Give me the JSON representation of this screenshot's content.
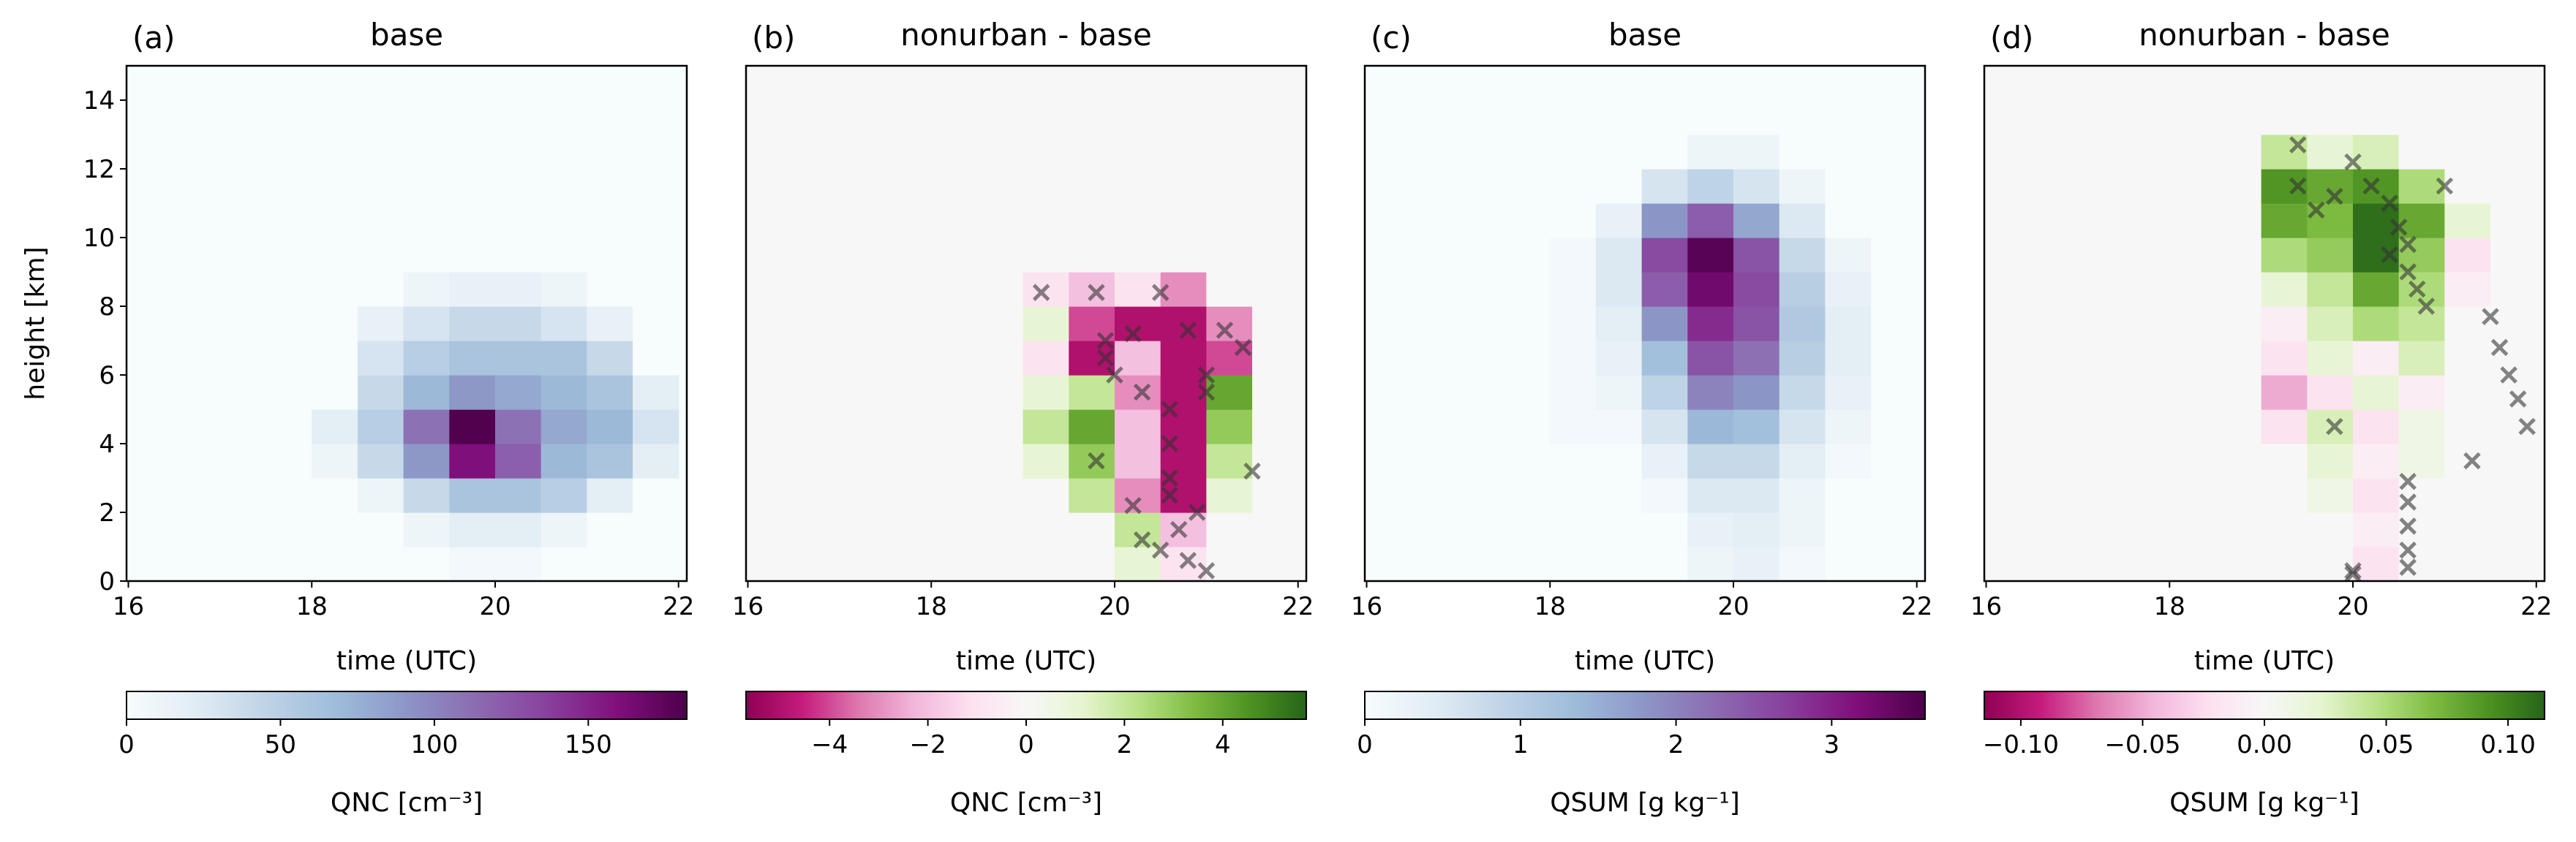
{
  "chart_data": [
    {
      "type": "heatmap",
      "panel_label": "(a)",
      "title": "base",
      "xlabel": "time (UTC)",
      "ylabel": "height [km]",
      "x_edges": [
        16,
        16.5,
        17,
        17.5,
        18,
        18.5,
        19,
        19.5,
        20,
        20.5,
        21,
        21.5,
        22
      ],
      "y_edges": [
        0,
        1,
        2,
        3,
        4,
        5,
        6,
        7,
        8,
        9,
        10,
        11,
        12,
        13,
        14,
        15
      ],
      "z": [
        [
          0,
          0,
          0,
          0,
          0,
          0,
          0,
          5,
          5,
          0,
          0,
          0
        ],
        [
          0,
          0,
          0,
          0,
          0,
          0,
          10,
          20,
          20,
          10,
          0,
          0
        ],
        [
          0,
          0,
          0,
          0,
          0,
          10,
          40,
          60,
          60,
          50,
          20,
          0
        ],
        [
          0,
          0,
          0,
          0,
          10,
          40,
          90,
          160,
          120,
          70,
          60,
          20
        ],
        [
          0,
          0,
          0,
          0,
          20,
          50,
          110,
          180,
          110,
          80,
          70,
          30
        ],
        [
          0,
          0,
          0,
          0,
          0,
          40,
          70,
          90,
          80,
          70,
          60,
          20
        ],
        [
          0,
          0,
          0,
          0,
          0,
          30,
          50,
          60,
          60,
          60,
          40,
          0
        ],
        [
          0,
          0,
          0,
          0,
          0,
          15,
          30,
          40,
          40,
          30,
          15,
          0
        ],
        [
          0,
          0,
          0,
          0,
          0,
          0,
          10,
          15,
          15,
          10,
          0,
          0
        ],
        [
          0,
          0,
          0,
          0,
          0,
          0,
          0,
          0,
          0,
          0,
          0,
          0
        ],
        [
          0,
          0,
          0,
          0,
          0,
          0,
          0,
          0,
          0,
          0,
          0,
          0
        ],
        [
          0,
          0,
          0,
          0,
          0,
          0,
          0,
          0,
          0,
          0,
          0,
          0
        ],
        [
          0,
          0,
          0,
          0,
          0,
          0,
          0,
          0,
          0,
          0,
          0,
          0
        ],
        [
          0,
          0,
          0,
          0,
          0,
          0,
          0,
          0,
          0,
          0,
          0,
          0
        ],
        [
          0,
          0,
          0,
          0,
          0,
          0,
          0,
          0,
          0,
          0,
          0,
          0
        ]
      ],
      "xlim": [
        15.98,
        22.09
      ],
      "xticks": [
        16,
        18,
        20,
        22
      ],
      "ylim": [
        0,
        15
      ],
      "yticks": [
        0,
        2,
        4,
        6,
        8,
        10,
        12,
        14
      ],
      "colormap": [
        "#f7fcfd",
        "#e0ecf4",
        "#bfd3e6",
        "#9ebcda",
        "#8c96c6",
        "#8c6bb1",
        "#88419d",
        "#810f7c",
        "#4d004b"
      ],
      "clim": [
        0,
        182
      ],
      "colorbar_label": "QNC [cm⁻³]",
      "colorbar_ticks": [
        0,
        50,
        100,
        150
      ]
    },
    {
      "type": "heatmap",
      "panel_label": "(b)",
      "title": "nonurban - base",
      "xlabel": "time (UTC)",
      "x_edges": [
        16,
        16.5,
        17,
        17.5,
        18,
        18.5,
        19,
        19.5,
        20,
        20.5,
        21,
        21.5,
        22
      ],
      "y_edges": [
        0,
        1,
        2,
        3,
        4,
        5,
        6,
        7,
        8,
        9,
        10,
        11,
        12,
        13,
        14,
        15
      ],
      "z": [
        [
          0,
          0,
          0,
          0,
          0,
          0,
          0,
          0,
          1,
          -1,
          0,
          0
        ],
        [
          0,
          0,
          0,
          0,
          0,
          0,
          0,
          0,
          2,
          -2,
          0,
          0
        ],
        [
          0,
          0,
          0,
          0,
          0,
          0,
          0,
          2,
          -3,
          -5,
          1,
          0
        ],
        [
          0,
          0,
          0,
          0,
          0,
          0,
          1,
          3,
          -2,
          -5,
          2,
          0
        ],
        [
          0,
          0,
          0,
          0,
          0,
          0,
          2,
          4,
          -2,
          -5,
          3,
          0
        ],
        [
          0,
          0,
          0,
          0,
          0,
          0,
          1,
          2,
          -3,
          -5,
          4,
          0
        ],
        [
          0,
          0,
          0,
          0,
          0,
          0,
          -1,
          -5,
          -2,
          -5,
          -4,
          0
        ],
        [
          0,
          0,
          0,
          0,
          0,
          0,
          1,
          -4,
          -5,
          -5,
          -3,
          0
        ],
        [
          0,
          0,
          0,
          0,
          0,
          0,
          -1,
          -2,
          -1,
          -3,
          0,
          0
        ],
        [
          0,
          0,
          0,
          0,
          0,
          0,
          0,
          0,
          0,
          0,
          0,
          0
        ],
        [
          0,
          0,
          0,
          0,
          0,
          0,
          0,
          0,
          0,
          0,
          0,
          0
        ],
        [
          0,
          0,
          0,
          0,
          0,
          0,
          0,
          0,
          0,
          0,
          0,
          0
        ],
        [
          0,
          0,
          0,
          0,
          0,
          0,
          0,
          0,
          0,
          0,
          0,
          0
        ],
        [
          0,
          0,
          0,
          0,
          0,
          0,
          0,
          0,
          0,
          0,
          0,
          0
        ],
        [
          0,
          0,
          0,
          0,
          0,
          0,
          0,
          0,
          0,
          0,
          0,
          0
        ]
      ],
      "markers": {
        "color": "#333333",
        "x": [
          19.2,
          19.8,
          20.5,
          20.2,
          19.9,
          20.0,
          20.3,
          20.6,
          20.6,
          20.6,
          20.6,
          19.8,
          20.2,
          21.0,
          21.0,
          21.2,
          21.4,
          21.5,
          20.3,
          20.5,
          20.7,
          20.8,
          21.0,
          20.9,
          19.9,
          20.8
        ],
        "y": [
          8.4,
          8.4,
          8.4,
          7.2,
          6.5,
          6.0,
          5.5,
          5.0,
          4.0,
          3.0,
          2.5,
          3.5,
          2.2,
          6.0,
          5.5,
          7.3,
          6.8,
          3.2,
          1.2,
          0.9,
          1.5,
          0.6,
          0.3,
          2.0,
          7.0,
          7.3
        ]
      },
      "xlim": [
        15.98,
        22.09
      ],
      "xticks": [
        16,
        18,
        20,
        22
      ],
      "ylim": [
        0,
        15
      ],
      "colormap": [
        "#8e0152",
        "#c51b7d",
        "#de77ae",
        "#f1b6da",
        "#fde0ef",
        "#f7f7f7",
        "#e6f5d0",
        "#b8e186",
        "#7fbc41",
        "#4d9221",
        "#276419"
      ],
      "clim": [
        -5.7,
        5.7
      ],
      "colorbar_label": "QNC [cm⁻³]",
      "colorbar_ticks": [
        {
          "value": -4,
          "label": "−4"
        },
        {
          "value": -2,
          "label": "−2"
        },
        0,
        2,
        4
      ]
    },
    {
      "type": "heatmap",
      "panel_label": "(c)",
      "title": "base",
      "xlabel": "time (UTC)",
      "x_edges": [
        16,
        16.5,
        17,
        17.5,
        18,
        18.5,
        19,
        19.5,
        20,
        20.5,
        21,
        21.5,
        22
      ],
      "y_edges": [
        0,
        1,
        2,
        3,
        4,
        5,
        6,
        7,
        8,
        9,
        10,
        11,
        12,
        13,
        14,
        15
      ],
      "z": [
        [
          0,
          0,
          0,
          0,
          0,
          0,
          0,
          0.2,
          0.3,
          0.1,
          0,
          0
        ],
        [
          0,
          0,
          0,
          0,
          0,
          0,
          0,
          0.3,
          0.4,
          0.2,
          0,
          0
        ],
        [
          0,
          0,
          0,
          0,
          0,
          0,
          0.1,
          0.5,
          0.5,
          0.2,
          0,
          0
        ],
        [
          0,
          0,
          0,
          0,
          0,
          0,
          0.3,
          0.8,
          0.8,
          0.4,
          0.1,
          0
        ],
        [
          0,
          0,
          0,
          0,
          0.1,
          0.1,
          0.6,
          1.4,
          1.3,
          0.6,
          0.2,
          0
        ],
        [
          0,
          0,
          0,
          0,
          0.1,
          0.2,
          0.9,
          2.0,
          1.8,
          0.8,
          0.3,
          0
        ],
        [
          0,
          0,
          0,
          0,
          0.1,
          0.3,
          1.3,
          2.5,
          2.2,
          1.0,
          0.4,
          0
        ],
        [
          0,
          0,
          0,
          0,
          0.1,
          0.4,
          1.8,
          2.9,
          2.5,
          1.1,
          0.4,
          0
        ],
        [
          0,
          0,
          0,
          0,
          0.1,
          0.5,
          2.4,
          3.3,
          2.6,
          1.0,
          0.3,
          0
        ],
        [
          0,
          0,
          0,
          0,
          0.1,
          0.5,
          2.6,
          3.5,
          2.5,
          0.8,
          0.2,
          0
        ],
        [
          0,
          0,
          0,
          0,
          0,
          0.3,
          1.8,
          2.4,
          1.6,
          0.5,
          0,
          0
        ],
        [
          0,
          0,
          0,
          0,
          0,
          0,
          0.6,
          0.9,
          0.6,
          0.2,
          0,
          0
        ],
        [
          0,
          0,
          0,
          0,
          0,
          0,
          0,
          0.2,
          0.2,
          0,
          0,
          0
        ],
        [
          0,
          0,
          0,
          0,
          0,
          0,
          0,
          0,
          0,
          0,
          0,
          0
        ],
        [
          0,
          0,
          0,
          0,
          0,
          0,
          0,
          0,
          0,
          0,
          0,
          0
        ]
      ],
      "xlim": [
        15.98,
        22.09
      ],
      "xticks": [
        16,
        18,
        20,
        22
      ],
      "ylim": [
        0,
        15
      ],
      "colormap": [
        "#f7fcfd",
        "#e0ecf4",
        "#bfd3e6",
        "#9ebcda",
        "#8c96c6",
        "#8c6bb1",
        "#88419d",
        "#810f7c",
        "#4d004b"
      ],
      "clim": [
        0,
        3.6
      ],
      "colorbar_label": "QSUM [g kg⁻¹]",
      "colorbar_ticks": [
        0,
        1,
        2,
        3
      ]
    },
    {
      "type": "heatmap",
      "panel_label": "(d)",
      "title": "nonurban - base",
      "xlabel": "time (UTC)",
      "x_edges": [
        16,
        16.5,
        17,
        17.5,
        18,
        18.5,
        19,
        19.5,
        20,
        20.5,
        21,
        21.5,
        22
      ],
      "y_edges": [
        0,
        1,
        2,
        3,
        4,
        5,
        6,
        7,
        8,
        9,
        10,
        11,
        12,
        13,
        14,
        15
      ],
      "z": [
        [
          0,
          0,
          0,
          0,
          0,
          0,
          0,
          0,
          -0.02,
          0,
          0,
          0
        ],
        [
          0,
          0,
          0,
          0,
          0,
          0,
          0,
          0,
          -0.01,
          0,
          0,
          0
        ],
        [
          0,
          0,
          0,
          0,
          0,
          0,
          0,
          0.01,
          -0.02,
          0,
          0,
          0
        ],
        [
          0,
          0,
          0,
          0,
          0,
          0,
          0,
          0.02,
          -0.01,
          0.01,
          0,
          0
        ],
        [
          0,
          0,
          0,
          0,
          0,
          0,
          -0.02,
          0.03,
          -0.02,
          0.01,
          0,
          0
        ],
        [
          0,
          0,
          0,
          0,
          0,
          0,
          -0.05,
          -0.02,
          0.02,
          -0.01,
          0,
          0
        ],
        [
          0,
          0,
          0,
          0,
          0,
          0,
          -0.02,
          0.02,
          -0.01,
          0.03,
          0,
          0
        ],
        [
          0,
          0,
          0,
          0,
          0,
          0,
          -0.01,
          0.03,
          0.05,
          0.04,
          0,
          0
        ],
        [
          0,
          0,
          0,
          0,
          0,
          0,
          0.02,
          0.04,
          0.08,
          0.05,
          -0.01,
          0
        ],
        [
          0,
          0,
          0,
          0,
          0,
          0,
          0.05,
          0.06,
          0.11,
          0.06,
          -0.02,
          0
        ],
        [
          0,
          0,
          0,
          0,
          0,
          0,
          0.08,
          0.07,
          0.11,
          0.08,
          0.02,
          0
        ],
        [
          0,
          0,
          0,
          0,
          0,
          0,
          0.09,
          0.08,
          0.09,
          0.05,
          0,
          0
        ],
        [
          0,
          0,
          0,
          0,
          0,
          0,
          0.04,
          0.02,
          0.03,
          0,
          0,
          0
        ],
        [
          0,
          0,
          0,
          0,
          0,
          0,
          0,
          0,
          0,
          0,
          0,
          0
        ],
        [
          0,
          0,
          0,
          0,
          0,
          0,
          0,
          0,
          0,
          0,
          0,
          0
        ]
      ],
      "markers": {
        "color": "#333333",
        "x": [
          19.4,
          19.4,
          19.6,
          19.8,
          20.0,
          20.2,
          20.4,
          20.5,
          20.6,
          20.6,
          20.7,
          20.8,
          20.4,
          21.0,
          21.5,
          21.6,
          21.7,
          21.8,
          21.9,
          21.3,
          20.6,
          20.6,
          20.6,
          20.6,
          20.6,
          20.0,
          20.0,
          19.8
        ],
        "y": [
          12.7,
          11.5,
          10.8,
          11.2,
          12.2,
          11.5,
          11.0,
          10.3,
          9.8,
          9.0,
          8.5,
          8.0,
          9.5,
          11.5,
          7.7,
          6.8,
          6.0,
          5.3,
          4.5,
          3.5,
          2.9,
          2.3,
          1.6,
          0.9,
          0.4,
          0.3,
          0.2,
          4.5
        ]
      },
      "xlim": [
        15.98,
        22.09
      ],
      "xticks": [
        16,
        18,
        20,
        22
      ],
      "ylim": [
        0,
        15
      ],
      "colormap": [
        "#8e0152",
        "#c51b7d",
        "#de77ae",
        "#f1b6da",
        "#fde0ef",
        "#f7f7f7",
        "#e6f5d0",
        "#b8e186",
        "#7fbc41",
        "#4d9221",
        "#276419"
      ],
      "clim": [
        -0.115,
        0.115
      ],
      "colorbar_label": "QSUM [g kg⁻¹]",
      "colorbar_ticks": [
        {
          "value": -0.1,
          "label": "−0.10"
        },
        {
          "value": -0.05,
          "label": "−0.05"
        },
        {
          "value": 0,
          "label": "0.00"
        },
        0.05,
        {
          "value": 0.1,
          "label": "0.10"
        }
      ]
    }
  ]
}
